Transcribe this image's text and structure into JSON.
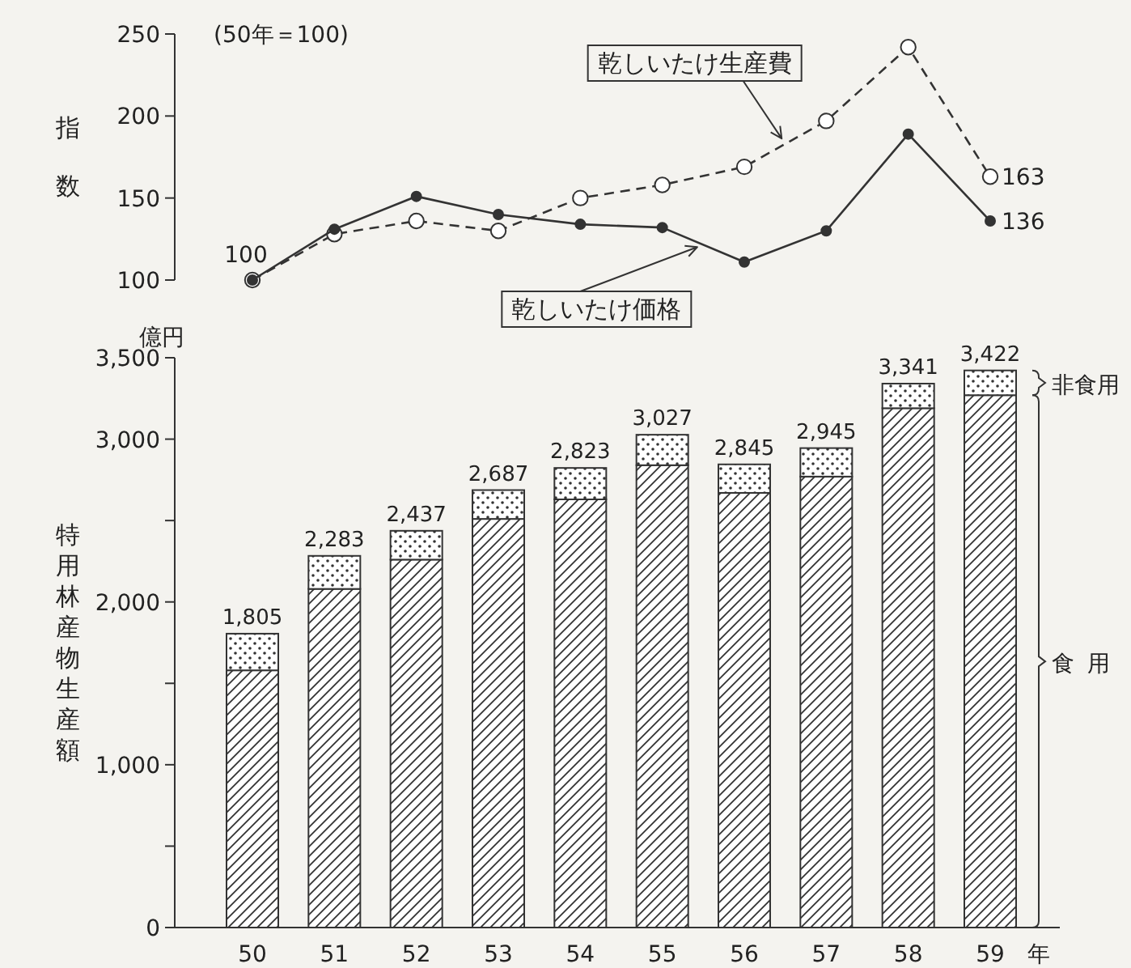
{
  "chart_data": [
    {
      "type": "line",
      "ylabel": "指数",
      "annotations": [
        "(50年＝100)"
      ],
      "categories": [
        "50",
        "51",
        "52",
        "53",
        "54",
        "55",
        "56",
        "57",
        "58",
        "59"
      ],
      "tick_labels": "y",
      "ylim": [
        100,
        250
      ],
      "yticks": [
        100,
        150,
        200,
        250
      ],
      "grid": false,
      "legend": "bottom",
      "marker": "circle",
      "series": [
        {
          "name": "乾しいたけ生産費",
          "color": "#333333",
          "line_style": "dashed",
          "values": [
            100,
            128,
            136,
            130,
            150,
            158,
            169,
            197,
            242,
            163
          ],
          "value_labels": [
            "100",
            null,
            null,
            null,
            null,
            null,
            null,
            null,
            null,
            "163"
          ]
        },
        {
          "name": "乾しいたけ価格",
          "color": "#333333",
          "line_style": "solid",
          "values": [
            100,
            131,
            151,
            140,
            134,
            132,
            111,
            130,
            189,
            136
          ],
          "value_labels": [
            null,
            null,
            null,
            null,
            null,
            null,
            null,
            null,
            null,
            "136"
          ]
        }
      ]
    },
    {
      "type": "bar",
      "stacked": true,
      "ylabel": "特用林産物生産額",
      "xlabel": "年",
      "annotations": [
        "億円"
      ],
      "categories": [
        "50",
        "51",
        "52",
        "53",
        "54",
        "55",
        "56",
        "57",
        "58",
        "59"
      ],
      "ylim": [
        0,
        3500
      ],
      "yticks": [
        0,
        {
          "value": 500,
          "label": null
        },
        {
          "value": 1000,
          "label": "1,000"
        },
        {
          "value": 1500,
          "label": null
        },
        {
          "value": 2000,
          "label": "2,000"
        },
        {
          "value": 2500,
          "label": null
        },
        {
          "value": 3000,
          "label": "3,000"
        },
        {
          "value": 3500,
          "label": "3,500"
        }
      ],
      "grid": false,
      "legend": "right",
      "totals": [
        "1,805",
        "2,283",
        "2,437",
        "2,687",
        "2,823",
        "3,027",
        "2,845",
        "2,945",
        "3,341",
        "3,422"
      ],
      "series": [
        {
          "name": "食用",
          "color": "#333333",
          "values": [
            1580,
            2080,
            2260,
            2510,
            2630,
            2840,
            2670,
            2770,
            3190,
            3270
          ]
        },
        {
          "name": "非食用",
          "color": "#333333",
          "values": [
            225,
            203,
            177,
            177,
            193,
            187,
            175,
            175,
            151,
            152
          ]
        }
      ]
    }
  ]
}
